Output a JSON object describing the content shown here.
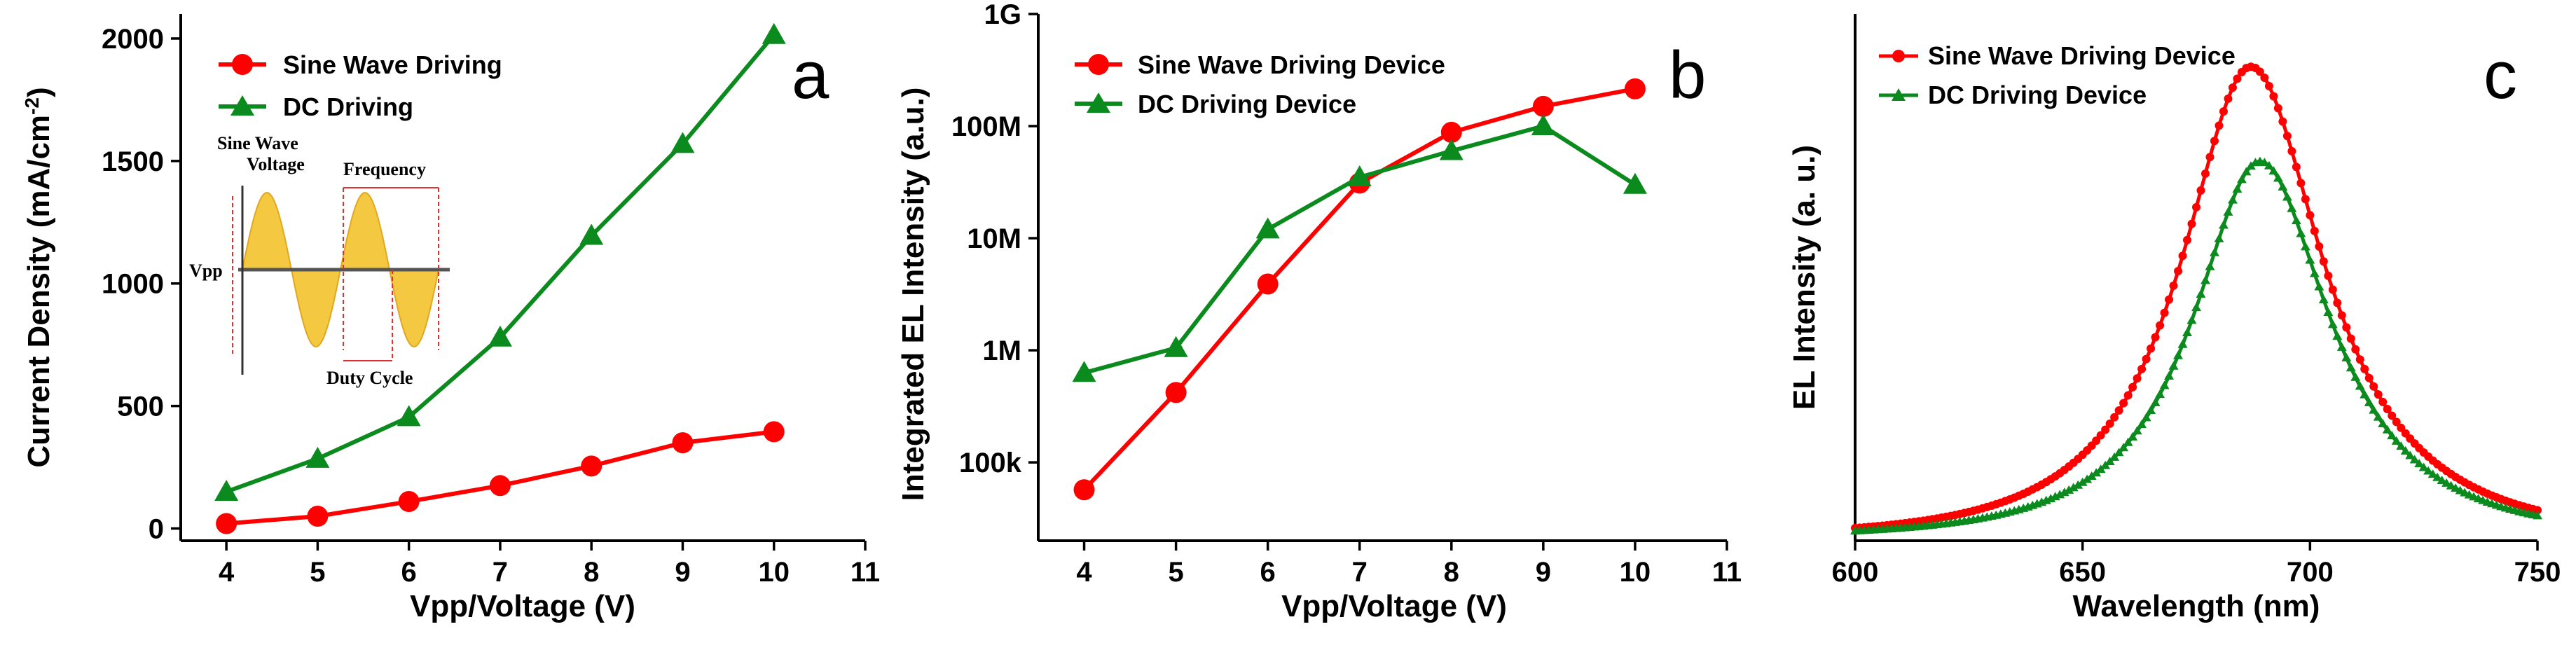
{
  "colors": {
    "red": "#ff0000",
    "green": "#0b8a1e",
    "sine_fill": "#f5c842"
  },
  "chart_data": [
    {
      "type": "line",
      "panel_label": "a",
      "xlabel": "Vpp/Voltage (V)",
      "ylabel": "Current Density (mA/cm",
      "ylabel_sup": "-2",
      "ylabel_tail": ")",
      "xlim": [
        3.5,
        11
      ],
      "ylim": [
        -50,
        2100
      ],
      "x_ticks": [
        4,
        5,
        6,
        7,
        8,
        9,
        10,
        11
      ],
      "x_tick_labels": [
        "4",
        "5",
        "6",
        "7",
        "8",
        "9",
        "10",
        "11"
      ],
      "y_ticks": [
        0,
        500,
        1000,
        1500,
        2000
      ],
      "y_tick_labels": [
        "0",
        "500",
        "1000",
        "1500",
        "2000"
      ],
      "x": [
        4,
        5,
        6,
        7,
        8,
        9,
        10
      ],
      "series": [
        {
          "name": "Sine Wave Driving",
          "marker": "circle",
          "color": "#ff0000",
          "values": [
            20,
            50,
            110,
            175,
            255,
            350,
            395
          ]
        },
        {
          "name": "DC Driving",
          "marker": "triangle",
          "color": "#0b8a1e",
          "values": [
            150,
            285,
            455,
            780,
            1195,
            1570,
            2015
          ]
        }
      ],
      "inset": {
        "labels": [
          "Sine Wave",
          "Voltage",
          "Frequency",
          "Vpp",
          "Duty Cycle"
        ]
      }
    },
    {
      "type": "line",
      "panel_label": "b",
      "xlabel": "Vpp/Voltage (V)",
      "ylabel": "Integrated  EL Intensity (a.u.)",
      "y_scale": "log",
      "xlim": [
        3.5,
        11
      ],
      "ylim": [
        20000,
        1000000000
      ],
      "x_ticks": [
        4,
        5,
        6,
        7,
        8,
        9,
        10,
        11
      ],
      "x_tick_labels": [
        "4",
        "5",
        "6",
        "7",
        "8",
        "9",
        "10",
        "11"
      ],
      "y_ticks": [
        100000,
        1000000,
        10000000,
        100000000,
        1000000000
      ],
      "y_tick_labels": [
        "100k",
        "1M",
        "10M",
        "100M",
        "1G"
      ],
      "x": [
        4,
        5,
        6,
        7,
        8,
        9,
        10
      ],
      "series": [
        {
          "name": "Sine Wave Driving Device",
          "marker": "circle",
          "color": "#ff0000",
          "values": [
            57000,
            420000,
            3900000,
            31000000,
            88000000,
            150000000,
            215000000
          ]
        },
        {
          "name": "DC Driving Device",
          "marker": "triangle",
          "color": "#0b8a1e",
          "values": [
            630000,
            1050000,
            12000000,
            35000000,
            60000000,
            100000000,
            30000000
          ]
        }
      ]
    },
    {
      "type": "line",
      "panel_label": "c",
      "xlabel": "Wavelength (nm)",
      "ylabel": "EL Intensity (a. u.)",
      "xlim": [
        600,
        750
      ],
      "ylim": [
        0,
        1.0
      ],
      "x_ticks": [
        600,
        650,
        700,
        750
      ],
      "x_tick_labels": [
        "600",
        "650",
        "700",
        "750"
      ],
      "y_ticks": [],
      "series": [
        {
          "name": "Sine Wave Driving Device",
          "marker": "circle",
          "color": "#ff0000",
          "peak_wavelength": 687,
          "peak_intensity": 0.89,
          "fwhm_left": 24,
          "fwhm_right": 25
        },
        {
          "name": "DC Driving Device",
          "marker": "triangle",
          "color": "#0b8a1e",
          "peak_wavelength": 689,
          "peak_intensity": 0.71,
          "fwhm_left": 23,
          "fwhm_right": 24
        }
      ]
    }
  ]
}
